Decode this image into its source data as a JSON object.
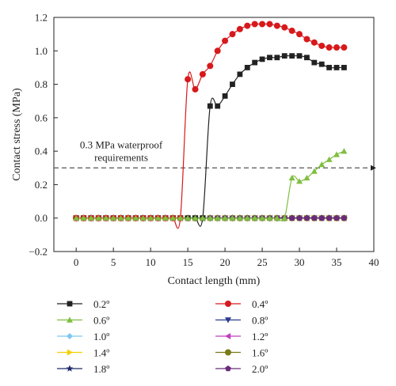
{
  "chart_data": {
    "type": "line",
    "xlabel": "Contact length (mm)",
    "ylabel": "Contact stress (MPa)",
    "xlim": [
      -3,
      40
    ],
    "ylim": [
      -0.2,
      1.2
    ],
    "xticks": [
      0,
      5,
      10,
      15,
      20,
      25,
      30,
      35,
      40
    ],
    "xtick_labels": [
      "0",
      "5",
      "10",
      "15",
      "20",
      "25",
      "30",
      "35",
      "40"
    ],
    "yticks": [
      -0.2,
      0.0,
      0.2,
      0.4,
      0.6,
      0.8,
      1.0,
      1.2
    ],
    "ytick_labels": [
      "−0.2",
      "0.0",
      "0.2",
      "0.4",
      "0.6",
      "0.8",
      "1.0",
      "1.2"
    ],
    "grid": false,
    "legend_position": "bottom",
    "reference_line": {
      "y": 0.3,
      "label_line1": "0.3 MPa waterproof",
      "label_line2": "requirements",
      "style": "dashed-arrow",
      "color": "#555555"
    },
    "series": [
      {
        "name": "0.2º",
        "color": "#222222",
        "marker": "square",
        "x": [
          0,
          1,
          2,
          3,
          4,
          5,
          6,
          7,
          8,
          9,
          10,
          11,
          12,
          13,
          14,
          15,
          16,
          17,
          18,
          19,
          20,
          21,
          22,
          23,
          24,
          25,
          26,
          27,
          28,
          29,
          30,
          31,
          32,
          33,
          34,
          35,
          36
        ],
        "y": [
          0,
          0,
          0,
          0,
          0,
          0,
          0,
          0,
          0,
          0,
          0,
          0,
          0,
          0,
          0,
          0,
          0,
          0,
          0.67,
          0.67,
          0.73,
          0.8,
          0.86,
          0.9,
          0.93,
          0.95,
          0.96,
          0.96,
          0.97,
          0.97,
          0.97,
          0.96,
          0.93,
          0.92,
          0.9,
          0.9,
          0.9
        ]
      },
      {
        "name": "0.4º",
        "color": "#d7191c",
        "marker": "circle",
        "x": [
          0,
          1,
          2,
          3,
          4,
          5,
          6,
          7,
          8,
          9,
          10,
          11,
          12,
          13,
          14,
          15,
          16,
          17,
          18,
          19,
          20,
          21,
          22,
          23,
          24,
          25,
          26,
          27,
          28,
          29,
          30,
          31,
          32,
          33,
          34,
          35,
          36
        ],
        "y": [
          0,
          0,
          0,
          0,
          0,
          0,
          0,
          0,
          0,
          0,
          0,
          0,
          0,
          0,
          0,
          0.83,
          0.77,
          0.86,
          0.91,
          1.0,
          1.06,
          1.1,
          1.13,
          1.15,
          1.16,
          1.16,
          1.16,
          1.15,
          1.14,
          1.12,
          1.1,
          1.07,
          1.05,
          1.03,
          1.02,
          1.02,
          1.02
        ]
      },
      {
        "name": "0.6º",
        "color": "#7fbf3f",
        "marker": "triangle-up",
        "x": [
          0,
          1,
          2,
          3,
          4,
          5,
          6,
          7,
          8,
          9,
          10,
          11,
          12,
          13,
          14,
          15,
          16,
          17,
          18,
          19,
          20,
          21,
          22,
          23,
          24,
          25,
          26,
          27,
          28,
          29,
          30,
          31,
          32,
          33,
          34,
          35,
          36
        ],
        "y": [
          0,
          0,
          0,
          0,
          0,
          0,
          0,
          0,
          0,
          0,
          0,
          0,
          0,
          0,
          0,
          0,
          0,
          0,
          0,
          0,
          0,
          0,
          0,
          0,
          0,
          0,
          0,
          0,
          0,
          0.24,
          0.22,
          0.24,
          0.28,
          0.32,
          0.35,
          0.38,
          0.4
        ]
      },
      {
        "name": "0.8º",
        "color": "#2b3a8f",
        "marker": "triangle-down",
        "x": [
          0,
          1,
          2,
          3,
          4,
          5,
          6,
          7,
          8,
          9,
          10,
          11,
          12,
          13,
          14,
          15,
          16,
          17,
          18,
          19,
          20,
          21,
          22,
          23,
          24,
          25,
          26,
          27,
          28,
          29,
          30,
          31,
          32,
          33,
          34,
          35,
          36
        ],
        "y": [
          0,
          0,
          0,
          0,
          0,
          0,
          0,
          0,
          0,
          0,
          0,
          0,
          0,
          0,
          0,
          0,
          0,
          0,
          0,
          0,
          0,
          0,
          0,
          0,
          0,
          0,
          0,
          0,
          0,
          0,
          0,
          0,
          0,
          0,
          0,
          0,
          0
        ]
      },
      {
        "name": "1.0º",
        "color": "#7ec8f0",
        "marker": "diamond",
        "x": [
          0,
          1,
          2,
          3,
          4,
          5,
          6,
          7,
          8,
          9,
          10,
          11,
          12,
          13,
          14,
          15,
          16,
          17,
          18,
          19,
          20,
          21,
          22,
          23,
          24,
          25,
          26,
          27,
          28,
          29,
          30,
          31,
          32,
          33,
          34,
          35,
          36
        ],
        "y": [
          0,
          0,
          0,
          0,
          0,
          0,
          0,
          0,
          0,
          0,
          0,
          0,
          0,
          0,
          0,
          0,
          0,
          0,
          0,
          0,
          0,
          0,
          0,
          0,
          0,
          0,
          0,
          0,
          0,
          0,
          0,
          0,
          0,
          0,
          0,
          0,
          0
        ]
      },
      {
        "name": "1.2º",
        "color": "#c03cbf",
        "marker": "triangle-left",
        "x": [
          0,
          1,
          2,
          3,
          4,
          5,
          6,
          7,
          8,
          9,
          10,
          11,
          12,
          13,
          14,
          15,
          16,
          17,
          18,
          19,
          20,
          21,
          22,
          23,
          24,
          25,
          26,
          27,
          28,
          29,
          30,
          31,
          32,
          33,
          34,
          35,
          36
        ],
        "y": [
          0,
          0,
          0,
          0,
          0,
          0,
          0,
          0,
          0,
          0,
          0,
          0,
          0,
          0,
          0,
          0,
          0,
          0,
          0,
          0,
          0,
          0,
          0,
          0,
          0,
          0,
          0,
          0,
          0,
          0,
          0,
          0,
          0,
          0,
          0,
          0,
          0
        ]
      },
      {
        "name": "1.4º",
        "color": "#f2d000",
        "marker": "triangle-right",
        "x": [
          0,
          1,
          2,
          3,
          4,
          5,
          6,
          7,
          8,
          9,
          10,
          11,
          12,
          13,
          14,
          15,
          16,
          17,
          18,
          19,
          20,
          21,
          22,
          23,
          24,
          25,
          26,
          27,
          28,
          29,
          30,
          31,
          32,
          33,
          34,
          35,
          36
        ],
        "y": [
          0,
          0,
          0,
          0,
          0,
          0,
          0,
          0,
          0,
          0,
          0,
          0,
          0,
          0,
          0,
          0,
          0,
          0,
          0,
          0,
          0,
          0,
          0,
          0,
          0,
          0,
          0,
          0,
          0,
          0,
          0,
          0,
          0,
          0,
          0,
          0,
          0
        ]
      },
      {
        "name": "1.6º",
        "color": "#7a7a1a",
        "marker": "circle",
        "x": [
          0,
          1,
          2,
          3,
          4,
          5,
          6,
          7,
          8,
          9,
          10,
          11,
          12,
          13,
          14,
          15,
          16,
          17,
          18,
          19,
          20,
          21,
          22,
          23,
          24,
          25,
          26,
          27,
          28,
          29,
          30,
          31,
          32,
          33,
          34,
          35,
          36
        ],
        "y": [
          0,
          0,
          0,
          0,
          0,
          0,
          0,
          0,
          0,
          0,
          0,
          0,
          0,
          0,
          0,
          0,
          0,
          0,
          0,
          0,
          0,
          0,
          0,
          0,
          0,
          0,
          0,
          0,
          0,
          0,
          0,
          0,
          0,
          0,
          0,
          0,
          0
        ]
      },
      {
        "name": "1.8º",
        "color": "#1f2a6b",
        "marker": "star",
        "x": [
          0,
          1,
          2,
          3,
          4,
          5,
          6,
          7,
          8,
          9,
          10,
          11,
          12,
          13,
          14,
          15,
          16,
          17,
          18,
          19,
          20,
          21,
          22,
          23,
          24,
          25,
          26,
          27,
          28,
          29,
          30,
          31,
          32,
          33,
          34,
          35,
          36
        ],
        "y": [
          0,
          0,
          0,
          0,
          0,
          0,
          0,
          0,
          0,
          0,
          0,
          0,
          0,
          0,
          0,
          0,
          0,
          0,
          0,
          0,
          0,
          0,
          0,
          0,
          0,
          0,
          0,
          0,
          0,
          0,
          0,
          0,
          0,
          0,
          0,
          0,
          0
        ]
      },
      {
        "name": "2.0º",
        "color": "#6a2c7a",
        "marker": "pentagon",
        "x": [
          0,
          1,
          2,
          3,
          4,
          5,
          6,
          7,
          8,
          9,
          10,
          11,
          12,
          13,
          14,
          15,
          16,
          17,
          18,
          19,
          20,
          21,
          22,
          23,
          24,
          25,
          26,
          27,
          28,
          29,
          30,
          31,
          32,
          33,
          34,
          35,
          36
        ],
        "y": [
          0,
          0,
          0,
          0,
          0,
          0,
          0,
          0,
          0,
          0,
          0,
          0,
          0,
          0,
          0,
          0,
          0,
          0,
          0,
          0,
          0,
          0,
          0,
          0,
          0,
          0,
          0,
          0,
          0,
          0,
          0,
          0,
          0,
          0,
          0,
          0,
          0
        ]
      }
    ],
    "legend_order": [
      "0.2º",
      "0.4º",
      "0.6º",
      "0.8º",
      "1.0º",
      "1.2º",
      "1.4º",
      "1.6º",
      "1.8º",
      "2.0º"
    ]
  }
}
